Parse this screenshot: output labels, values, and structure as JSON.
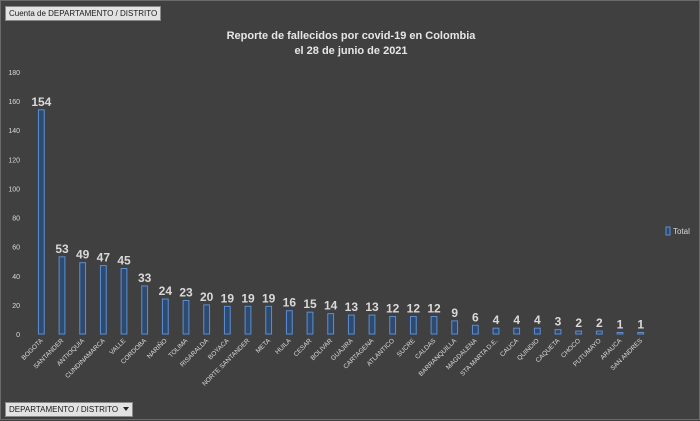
{
  "field_buttons": {
    "top": "Cuenta de DEPARTAMENTO / DISTRITO",
    "bottom": "DEPARTAMENTO / DISTRITO"
  },
  "colors": {
    "background": "#404040",
    "bar_fill": "#2e4a6e",
    "bar_stroke": "#5b8fd6",
    "text": "#d9d9d9",
    "grid": "#565656"
  },
  "chart_data": {
    "type": "bar",
    "title": "Reporte de fallecidos por covid-19 en Colombia",
    "subtitle": "el 28 de junio de 2021",
    "xlabel": "",
    "ylabel": "",
    "ylim": [
      0,
      180
    ],
    "yticks": [
      0,
      20,
      40,
      60,
      80,
      100,
      120,
      140,
      160,
      180
    ],
    "grid": false,
    "legend": {
      "position": "right",
      "entries": [
        "Total"
      ]
    },
    "categories": [
      "BOGOTA",
      "SANTANDER",
      "ANTIOQUIA",
      "CUNDINAMARCA",
      "VALLE",
      "CORDOBA",
      "NARIÑO",
      "TOLIMA",
      "RISARALDA",
      "BOYACA",
      "NORTE SANTANDER",
      "META",
      "HUILA",
      "CESAR",
      "BOLIVAR",
      "GUAJIRA",
      "CARTAGENA",
      "ATLANTICO",
      "SUCRE",
      "CALDAS",
      "BARRANQUILLA",
      "MAGDALENA",
      "STA MARTA D.E.",
      "CAUCA",
      "QUINDIO",
      "CAQUETA",
      "CHOCO",
      "PUTUMAYO",
      "ARAUCA",
      "SAN ANDRES"
    ],
    "series": [
      {
        "name": "Total",
        "values": [
          154,
          53,
          49,
          47,
          45,
          33,
          24,
          23,
          20,
          19,
          19,
          19,
          16,
          15,
          14,
          13,
          13,
          12,
          12,
          12,
          9,
          6,
          4,
          4,
          4,
          3,
          2,
          2,
          1,
          1
        ]
      }
    ]
  }
}
